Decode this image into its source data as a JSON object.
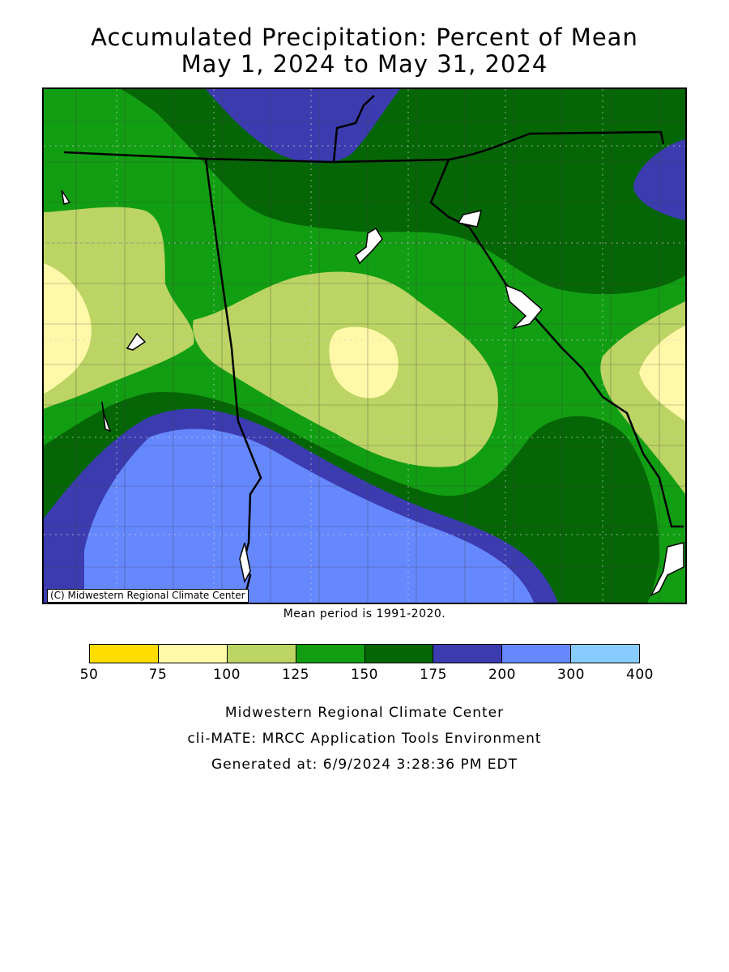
{
  "title_line1": "Accumulated Precipitation: Percent of Mean",
  "title_line2": "May 1, 2024 to May 31, 2024",
  "copyright": "(C) Midwestern Regional Climate Center",
  "mean_note": "Mean period is 1991-2020.",
  "legend": {
    "colors": [
      "#ffdd00",
      "#fff8a8",
      "#bcd464",
      "#129e12",
      "#056605",
      "#3c3cb0",
      "#6688ff",
      "#88ccff"
    ],
    "ticks": [
      "50",
      "75",
      "100",
      "125",
      "150",
      "175",
      "200",
      "300",
      "400"
    ]
  },
  "footer": {
    "line1": "Midwestern Regional Climate Center",
    "line2": "cli-MATE: MRCC Application Tools Environment",
    "line3": "Generated at: 6/9/2024 3:28:36 PM EDT"
  }
}
